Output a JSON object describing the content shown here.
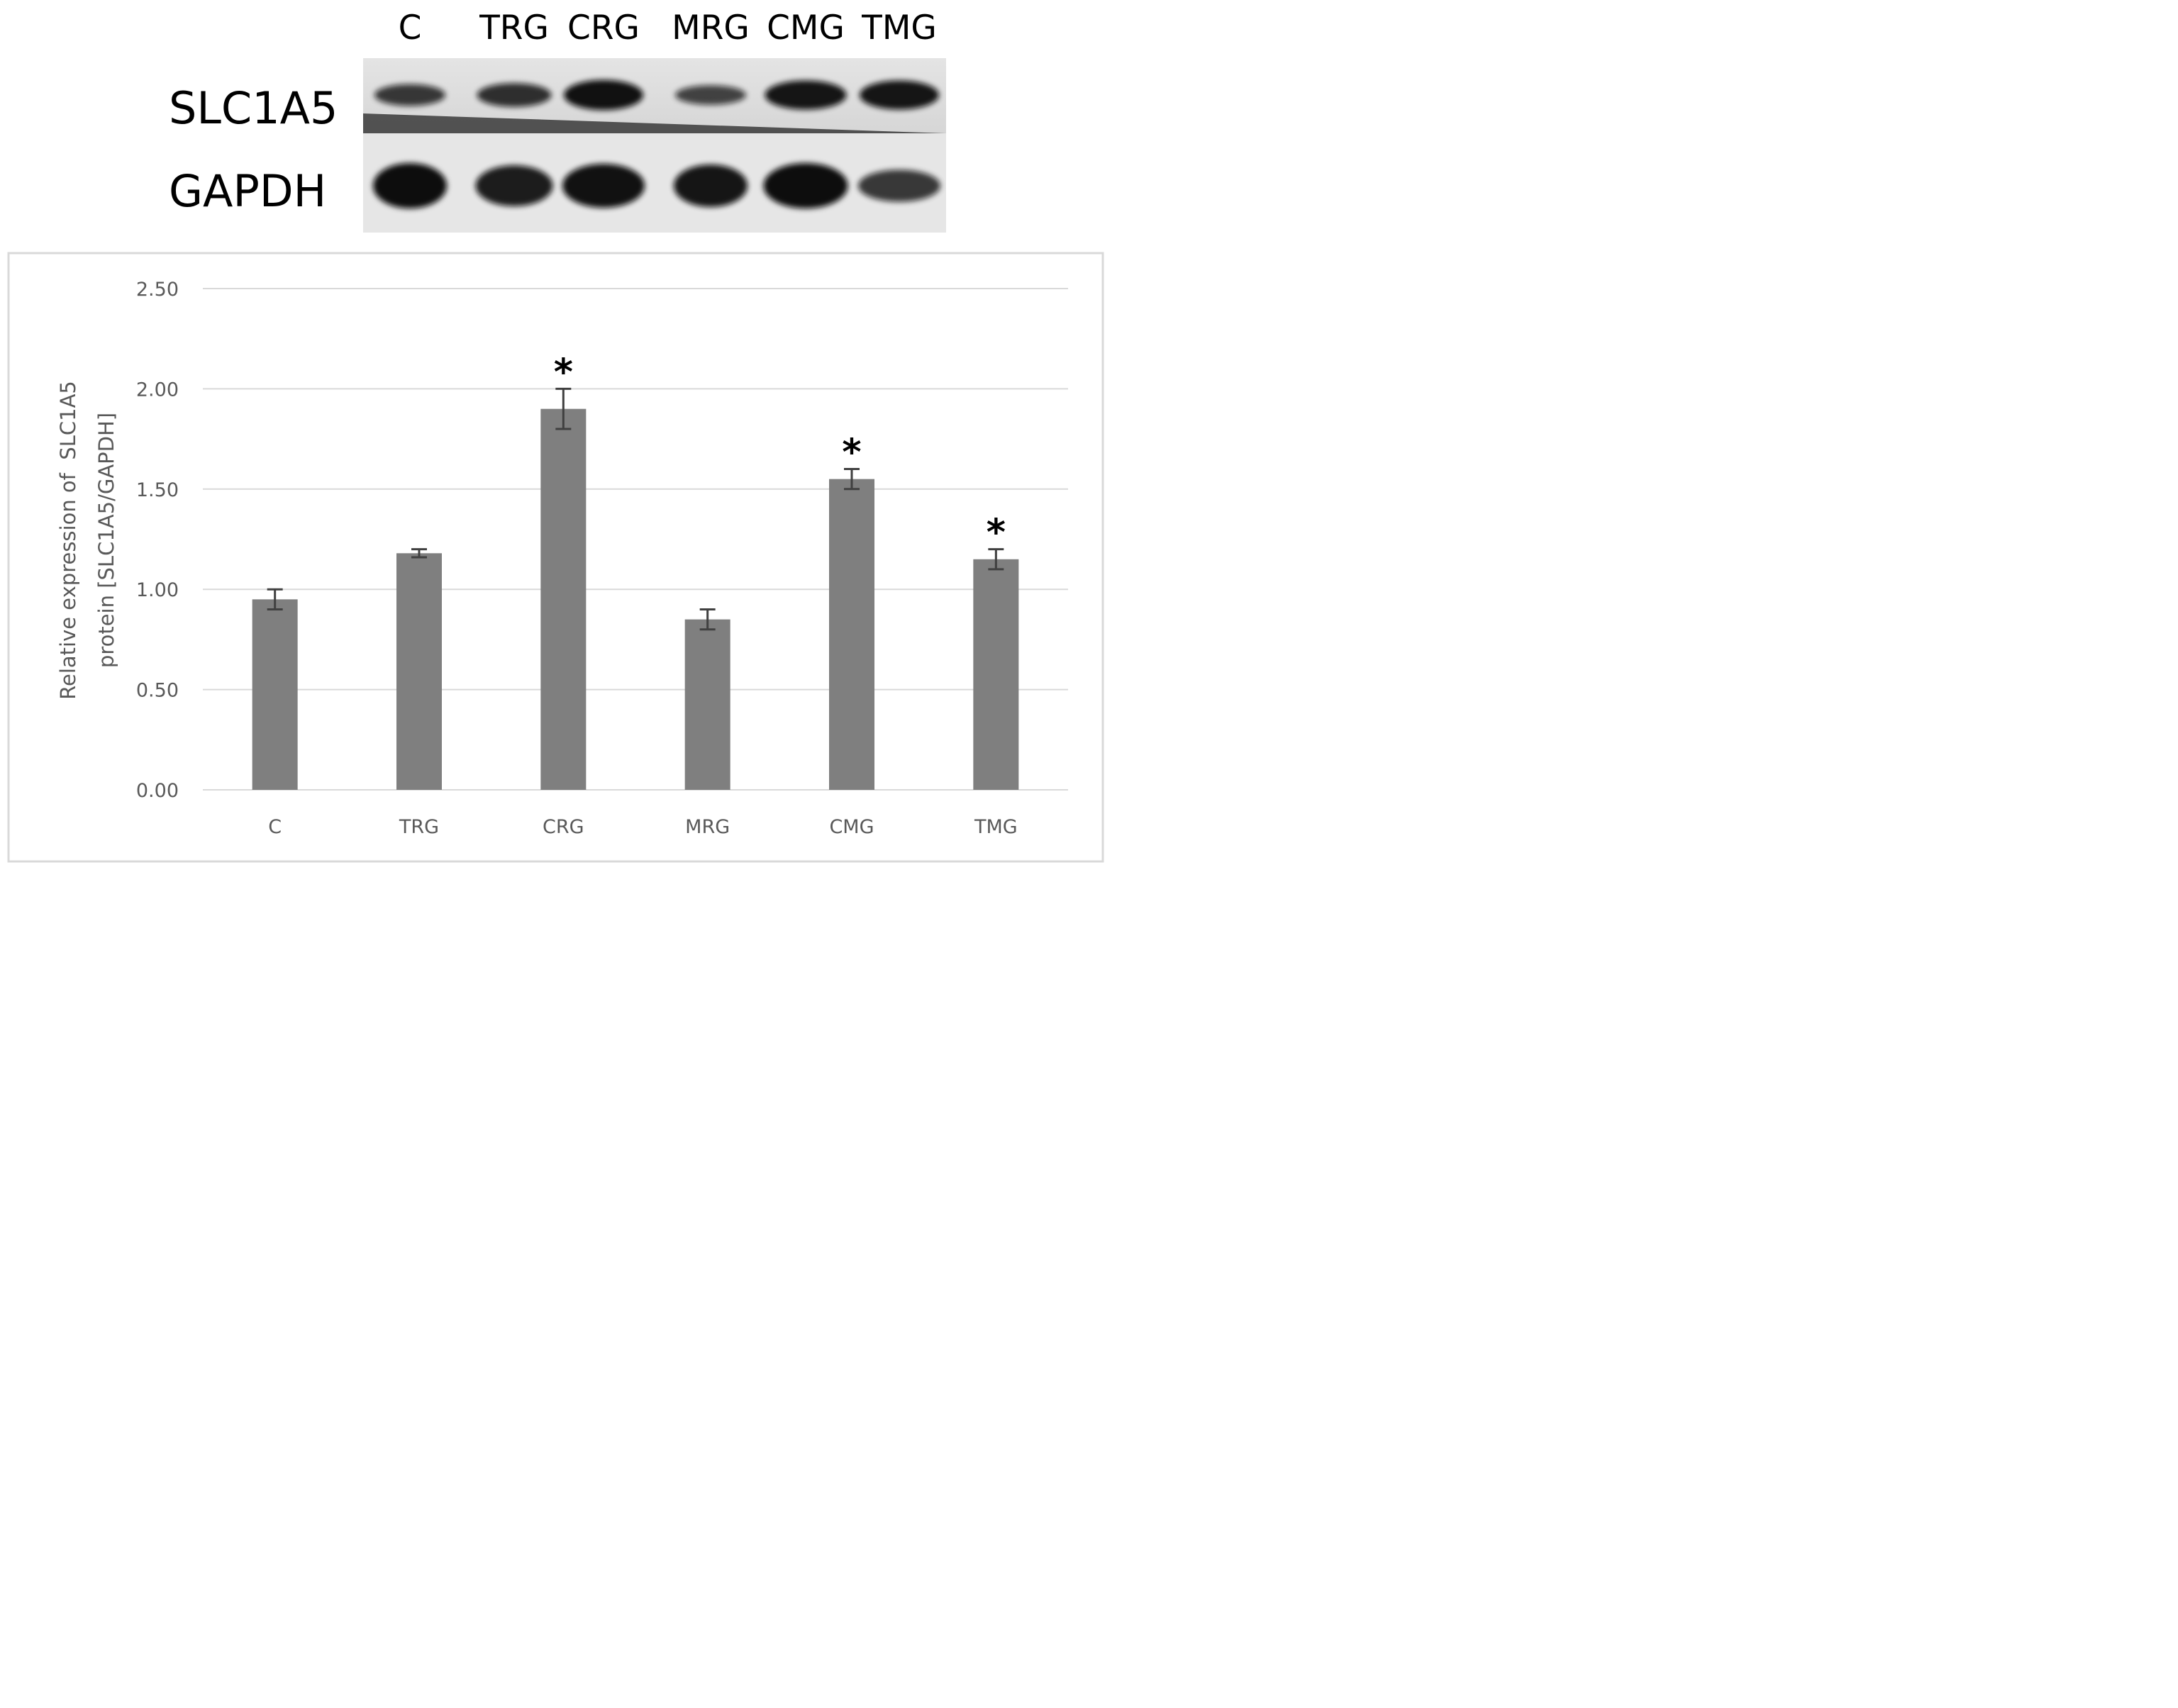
{
  "blot": {
    "lanes": [
      "C",
      "TRG",
      "CRG",
      "MRG",
      "CMG",
      "TMG"
    ],
    "proteins": [
      "SLC1A5",
      "GAPDH"
    ],
    "slc1a5_band_intensity": [
      0.55,
      0.65,
      0.95,
      0.45,
      0.9,
      0.9
    ],
    "gapdh_band_intensity": [
      1.0,
      0.85,
      0.95,
      0.9,
      1.0,
      0.55
    ]
  },
  "chart_data": {
    "type": "bar",
    "categories": [
      "C",
      "TRG",
      "CRG",
      "MRG",
      "CMG",
      "TMG"
    ],
    "values": [
      0.95,
      1.18,
      1.9,
      0.85,
      1.55,
      1.15
    ],
    "errors": [
      0.05,
      0.02,
      0.1,
      0.05,
      0.05,
      0.05
    ],
    "significant": [
      false,
      false,
      true,
      false,
      true,
      true
    ],
    "significance_marker": "*",
    "ylabel_lines": [
      "Relative expression of  SLC1A5",
      "protein [SLC1A5/GAPDH]"
    ],
    "xlabel": "",
    "ylim": [
      0,
      2.5
    ],
    "yticks": [
      "0.00",
      "0.50",
      "1.00",
      "1.50",
      "2.00",
      "2.50"
    ],
    "ytick_values": [
      0,
      0.5,
      1.0,
      1.5,
      2.0,
      2.5
    ],
    "grid": true,
    "colors": {
      "bar": "#7f7f7f",
      "error_bar": "#404040",
      "grid": "#d9d9d9",
      "frame": "#d9d9d9",
      "tick_text": "#595959"
    }
  }
}
